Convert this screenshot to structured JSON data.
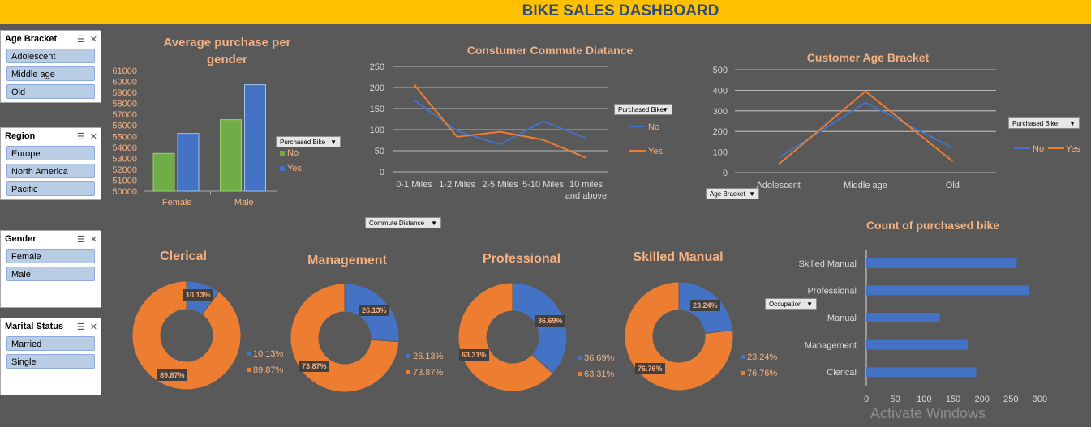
{
  "banner": {
    "title": "BIKE SALES DASHBOARD"
  },
  "slicers": [
    {
      "title": "Age Bracket",
      "items": [
        "Adolescent",
        "Middle age",
        "Old"
      ]
    },
    {
      "title": "Region",
      "items": [
        "Europe",
        "North America",
        "Pacific"
      ]
    },
    {
      "title": "Gender",
      "items": [
        "Female",
        "Male"
      ]
    },
    {
      "title": "Marital Status",
      "items": [
        "Married",
        "Single"
      ]
    }
  ],
  "slicer_icons": [
    "multi-select-icon",
    "clear-filter-icon"
  ],
  "filters": {
    "purchased_bike_1": "Purchased Bike",
    "purchased_bike_2": "Purchased Bike",
    "purchased_bike_3": "Purchased Bike",
    "commute_distance": "Commute Distance",
    "age_bracket": "Age Bracket",
    "occupation": "Occupation"
  },
  "colors": {
    "banner": "#FFC000",
    "background": "#595959",
    "blue": "#4472C4",
    "orange": "#ED7D31",
    "green": "#70AD47",
    "title": "#F4B183",
    "banner_text": "#2F4B7C"
  },
  "chart_data": [
    {
      "id": "gender",
      "type": "bar",
      "title": "Average purchase per gender",
      "categories": [
        "Female",
        "Male"
      ],
      "series": [
        {
          "name": "No",
          "values": [
            53450,
            56520
          ]
        },
        {
          "name": "Yes",
          "values": [
            55270,
            59700
          ]
        }
      ],
      "ylim": [
        50000,
        61000
      ],
      "yticks": [
        "61000",
        "60000",
        "59000",
        "58000",
        "57000",
        "56000",
        "55000",
        "54000",
        "53000",
        "52000",
        "51000",
        "50000"
      ],
      "legend": "right"
    },
    {
      "id": "commute",
      "type": "line",
      "title": "Constumer Commute Diatance",
      "categories": [
        "0-1 Miles",
        "1-2 Miles",
        "2-5 Miles",
        "5-10 Miles",
        "10 miles and above"
      ],
      "series": [
        {
          "name": "No",
          "values": [
            170,
            97,
            65,
            120,
            80
          ]
        },
        {
          "name": "Yes",
          "values": [
            207,
            83,
            95,
            76,
            33
          ]
        }
      ],
      "ylim": [
        0,
        250
      ],
      "yticks": [
        "250",
        "200",
        "150",
        "100",
        "50",
        "0"
      ],
      "legend": "right"
    },
    {
      "id": "age",
      "type": "line",
      "title": "Customer Age Bracket",
      "categories": [
        "Adolescent",
        "Middle age",
        "Old"
      ],
      "series": [
        {
          "name": "No",
          "values": [
            71,
            340,
            120
          ]
        },
        {
          "name": "Yes",
          "values": [
            40,
            395,
            55
          ]
        }
      ],
      "ylim": [
        0,
        500
      ],
      "yticks": [
        "500",
        "400",
        "300",
        "200",
        "100",
        "0"
      ],
      "legend": "right"
    },
    {
      "id": "clerical",
      "type": "pie",
      "title": "Clerical",
      "slices": [
        {
          "label": "10.13%",
          "value": 10.13
        },
        {
          "label": "89.87%",
          "value": 89.87
        }
      ]
    },
    {
      "id": "management",
      "type": "pie",
      "title": "Management",
      "slices": [
        {
          "label": "26.13%",
          "value": 26.13
        },
        {
          "label": "73.87%",
          "value": 73.87
        }
      ]
    },
    {
      "id": "professional",
      "type": "pie",
      "title": "Professional",
      "slices": [
        {
          "label": "36.69%",
          "value": 36.69
        },
        {
          "label": "63.31%",
          "value": 63.31
        }
      ]
    },
    {
      "id": "skilled",
      "type": "pie",
      "title": "Skilled Manual",
      "slices": [
        {
          "label": "23.24%",
          "value": 23.24
        },
        {
          "label": "76.76%",
          "value": 76.76
        }
      ]
    },
    {
      "id": "occupation",
      "type": "bar",
      "orientation": "horizontal",
      "title": "Count of purchased bike",
      "categories": [
        "Skilled Manual",
        "Professional",
        "Manual",
        "Management",
        "Clerical"
      ],
      "values": [
        260,
        282,
        127,
        175,
        190
      ],
      "xlim": [
        0,
        300
      ],
      "xticks": [
        "0",
        "50",
        "100",
        "150",
        "200",
        "250",
        "300"
      ]
    }
  ],
  "watermark": "Activate Windows"
}
